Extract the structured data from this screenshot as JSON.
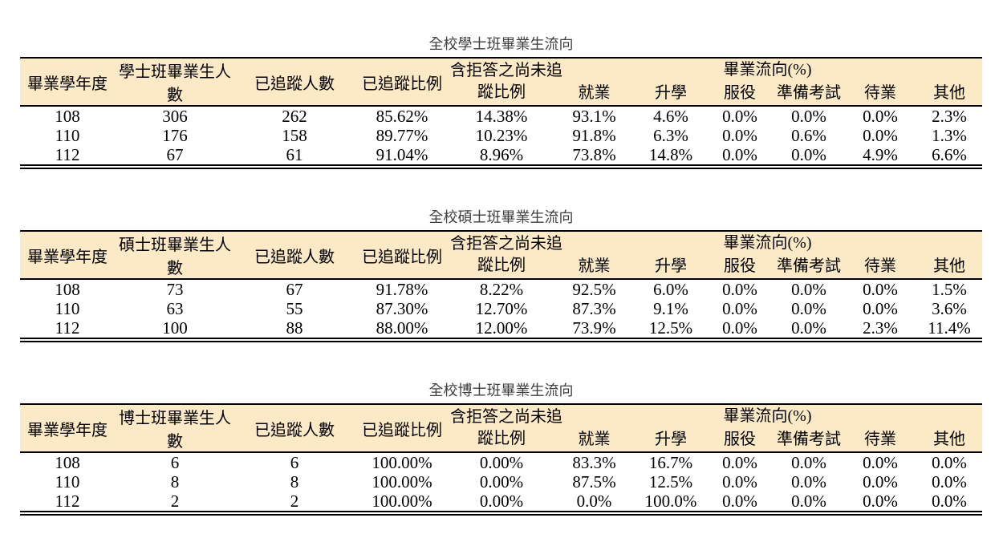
{
  "colors": {
    "header_bg": "#fce9c6",
    "border": "#000000",
    "title_text": "#3f3f3f"
  },
  "tables": [
    {
      "id": "bachelor",
      "title": "全校學士班畢業生流向",
      "headers": {
        "year": "畢業學年度",
        "grad_count": "學士班畢業生人數",
        "tracked_count": "已追蹤人數",
        "tracked_ratio": "已追蹤比例",
        "untracked_line1": "含拒答之尚未追",
        "untracked_line2": "蹤比例",
        "flow_group": "畢業流向(%)",
        "flow_subs": [
          "就業",
          "升學",
          "服役",
          "準備考試",
          "待業",
          "其他"
        ]
      },
      "rows": [
        [
          "108",
          "306",
          "262",
          "85.62%",
          "14.38%",
          "93.1%",
          "4.6%",
          "0.0%",
          "0.0%",
          "0.0%",
          "2.3%"
        ],
        [
          "110",
          "176",
          "158",
          "89.77%",
          "10.23%",
          "91.8%",
          "6.3%",
          "0.0%",
          "0.6%",
          "0.0%",
          "1.3%"
        ],
        [
          "112",
          "67",
          "61",
          "91.04%",
          "8.96%",
          "73.8%",
          "14.8%",
          "0.0%",
          "0.0%",
          "4.9%",
          "6.6%"
        ]
      ]
    },
    {
      "id": "master",
      "title": "全校碩士班畢業生流向",
      "headers": {
        "year": "畢業學年度",
        "grad_count": "碩士班畢業生人數",
        "tracked_count": "已追蹤人數",
        "tracked_ratio": "已追蹤比例",
        "untracked_line1": "含拒答之尚未追",
        "untracked_line2": "蹤比例",
        "flow_group": "畢業流向(%)",
        "flow_subs": [
          "就業",
          "升學",
          "服役",
          "準備考試",
          "待業",
          "其他"
        ]
      },
      "rows": [
        [
          "108",
          "73",
          "67",
          "91.78%",
          "8.22%",
          "92.5%",
          "6.0%",
          "0.0%",
          "0.0%",
          "0.0%",
          "1.5%"
        ],
        [
          "110",
          "63",
          "55",
          "87.30%",
          "12.70%",
          "87.3%",
          "9.1%",
          "0.0%",
          "0.0%",
          "0.0%",
          "3.6%"
        ],
        [
          "112",
          "100",
          "88",
          "88.00%",
          "12.00%",
          "73.9%",
          "12.5%",
          "0.0%",
          "0.0%",
          "2.3%",
          "11.4%"
        ]
      ]
    },
    {
      "id": "doctoral",
      "title": "全校博士班畢業生流向",
      "headers": {
        "year": "畢業學年度",
        "grad_count": "博士班畢業生人數",
        "tracked_count": "已追蹤人數",
        "tracked_ratio": "已追蹤比例",
        "untracked_line1": "含拒答之尚未追",
        "untracked_line2": "蹤比例",
        "flow_group": "畢業流向(%)",
        "flow_subs": [
          "就業",
          "升學",
          "服役",
          "準備考試",
          "待業",
          "其他"
        ]
      },
      "rows": [
        [
          "108",
          "6",
          "6",
          "100.00%",
          "0.00%",
          "83.3%",
          "16.7%",
          "0.0%",
          "0.0%",
          "0.0%",
          "0.0%"
        ],
        [
          "110",
          "8",
          "8",
          "100.00%",
          "0.00%",
          "87.5%",
          "12.5%",
          "0.0%",
          "0.0%",
          "0.0%",
          "0.0%"
        ],
        [
          "112",
          "2",
          "2",
          "100.00%",
          "0.00%",
          "0.0%",
          "100.0%",
          "0.0%",
          "0.0%",
          "0.0%",
          "0.0%"
        ]
      ]
    }
  ]
}
